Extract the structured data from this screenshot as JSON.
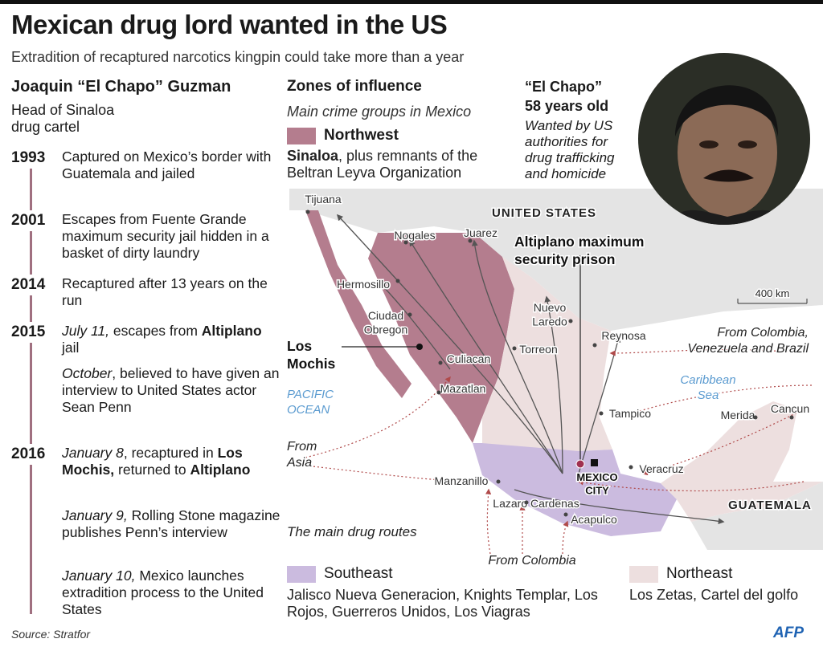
{
  "header": {
    "title": "Mexican drug lord wanted in the US",
    "subtitle": "Extradition of recaptured narcotics kingpin could take more than a year"
  },
  "profile": {
    "name": "Joaquin “El Chapo” Guzman",
    "role": [
      "Head of Sinaloa",
      "drug cartel"
    ]
  },
  "timeline": [
    {
      "year": "1993",
      "items": [
        [
          {
            "text": "Captured on Mexico’s border with Guatemala and jailed"
          }
        ]
      ]
    },
    {
      "year": "2001",
      "items": [
        [
          {
            "text": "Escapes from Fuente Grande maximum security jail hidden in a basket of dirty laundry"
          }
        ]
      ]
    },
    {
      "year": "2014",
      "items": [
        [
          {
            "text": "Recaptured after 13 years on the run"
          }
        ]
      ]
    },
    {
      "year": "2015",
      "items": [
        [
          {
            "text": "July 11,",
            "style": "italic"
          },
          {
            "text": " escapes from "
          },
          {
            "text": "Altiplano",
            "style": "bold"
          },
          {
            "text": " jail"
          }
        ],
        [
          {
            "text": "October",
            "style": "italic"
          },
          {
            "text": ", believed to have given an interview to United States actor Sean Penn"
          }
        ]
      ]
    },
    {
      "year": "2016",
      "items": [
        [
          {
            "text": "January 8",
            "style": "italic"
          },
          {
            "text": ", recaptured in "
          },
          {
            "text": "Los Mochis,",
            "style": "bold"
          },
          {
            "text": " returned to "
          },
          {
            "text": "Altiplano",
            "style": "bold"
          }
        ],
        [
          {
            "text": "January 9,",
            "style": "italic"
          },
          {
            "text": " Rolling Stone magazine publishes Penn’s interview"
          }
        ],
        [
          {
            "text": "January 10,",
            "style": "italic"
          },
          {
            "text": " Mexico launches extradition process to the United States"
          }
        ]
      ]
    }
  ],
  "zones": {
    "title": "Zones of influence",
    "subtitle": "Main crime groups in Mexico",
    "groups": [
      {
        "name": "Northwest",
        "color": "#b47d8e",
        "description": [
          {
            "text": "Sinaloa",
            "style": "bold"
          },
          {
            "text": ", plus remnants of the Beltran Leyva Organization"
          }
        ]
      },
      {
        "name": "Southeast",
        "color": "#cbbbdf",
        "description": [
          {
            "text": "Jalisco Nueva Generacion, Knights Templar, Los Rojos, Guerreros Unidos, Los Viagras"
          }
        ]
      },
      {
        "name": "Northeast",
        "color": "#eddfdf",
        "description": [
          {
            "text": "Los Zetas, Cartel del golfo"
          }
        ]
      }
    ]
  },
  "portrait": {
    "name": "“El Chapo”",
    "age": "58 years old",
    "note": "Wanted by US authorities for drug trafficking and homicide"
  },
  "map": {
    "labels": [
      {
        "lines": [
          "UNITED STATES"
        ]
      },
      {
        "lines": [
          "GUATEMALA"
        ]
      },
      {
        "lines": [
          "Tijuana"
        ]
      },
      {
        "lines": [
          "Nogales"
        ]
      },
      {
        "lines": [
          "Juarez"
        ]
      },
      {
        "lines": [
          "Hermosillo"
        ]
      },
      {
        "lines": [
          "Ciudad",
          "Obregon"
        ]
      },
      {
        "lines": [
          "Culiacan"
        ]
      },
      {
        "lines": [
          "Mazatlan"
        ]
      },
      {
        "lines": [
          "Nuevo",
          "Laredo"
        ]
      },
      {
        "lines": [
          "Torreon"
        ]
      },
      {
        "lines": [
          "Reynosa"
        ]
      },
      {
        "lines": [
          "Tampico"
        ]
      },
      {
        "lines": [
          "Veracruz"
        ]
      },
      {
        "lines": [
          "Manzanillo"
        ]
      },
      {
        "lines": [
          "Lazaro Cardenas"
        ]
      },
      {
        "lines": [
          "Acapulco"
        ]
      },
      {
        "lines": [
          "Merida"
        ]
      },
      {
        "lines": [
          "Cancun"
        ]
      },
      {
        "lines": [
          "PACIFIC",
          "OCEAN"
        ]
      },
      {
        "lines": [
          "Caribbean",
          "Sea"
        ]
      },
      {
        "lines": [
          "From",
          "Asia"
        ]
      },
      {
        "lines": [
          "From Colombia"
        ]
      },
      {
        "lines": [
          "From Colombia,",
          "Venezuela and Brazil"
        ]
      },
      {
        "lines": [
          "The main drug routes"
        ]
      },
      {
        "lines": [
          "400 km"
        ]
      },
      {
        "lines": [
          "Altiplano maximum",
          "security prison"
        ]
      },
      {
        "lines": [
          "Los",
          "Mochis"
        ]
      },
      {
        "lines": [
          "MEXICO",
          "CITY"
        ]
      }
    ]
  },
  "footer": {
    "source": "Source: Stratfor",
    "credit": "AFP"
  }
}
